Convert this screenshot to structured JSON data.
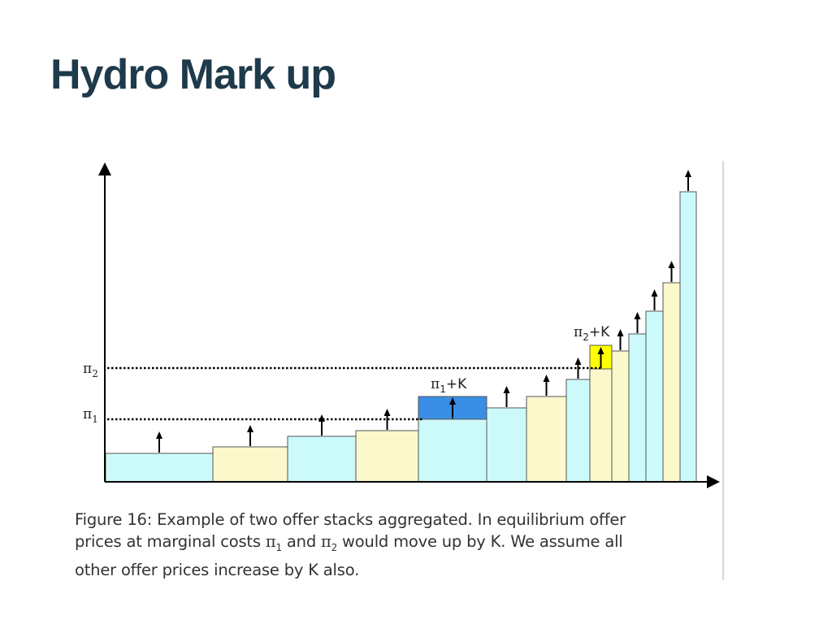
{
  "slide": {
    "title": "Hydro Mark up"
  },
  "diagram": {
    "y_labels": {
      "pi2": {
        "symbol": "π",
        "subscript": "2"
      },
      "pi1": {
        "symbol": "π",
        "subscript": "1"
      }
    },
    "annotations": {
      "pi1_plus_k": {
        "symbol": "π",
        "subscript": "1",
        "suffix": "+K"
      },
      "pi2_plus_k": {
        "symbol": "π",
        "subscript": "2",
        "suffix": "+K"
      }
    },
    "colors": {
      "cyan": "#ccfafa",
      "cream": "#fbf8cc",
      "blue_markup": "#3a8ee6",
      "yellow_markup": "#ffff00",
      "line": "#000000"
    },
    "blocks": [
      {
        "color": "cyan",
        "level": 1,
        "arrow": true
      },
      {
        "color": "cream",
        "level": 2,
        "arrow": true
      },
      {
        "color": "cyan",
        "level": 3,
        "arrow": true
      },
      {
        "color": "cream",
        "level": 4,
        "arrow": true
      },
      {
        "color": "cyan",
        "level": 5,
        "arrow": true,
        "markup": "pi1_plus_k"
      },
      {
        "color": "cyan",
        "level": 6,
        "arrow": true
      },
      {
        "color": "cream",
        "level": 7,
        "arrow": true
      },
      {
        "color": "cyan",
        "level": 8,
        "arrow": true
      },
      {
        "color": "cream",
        "level": 9,
        "arrow": true,
        "markup": "pi2_plus_k"
      },
      {
        "color": "cream",
        "level": 10,
        "arrow": true
      },
      {
        "color": "cyan",
        "level": 11,
        "arrow": true
      },
      {
        "color": "cyan",
        "level": 12,
        "arrow": true
      },
      {
        "color": "cream",
        "level": 13,
        "arrow": true
      },
      {
        "color": "cyan",
        "level": 14,
        "arrow": true
      }
    ]
  },
  "caption": {
    "line1": "Figure 16: Example of two offer stacks aggregated. In equilibrium offer",
    "line2_a": "prices at marginal costs ",
    "line2_pi1": "π",
    "line2_sub1": "1",
    "line2_b": " and ",
    "line2_pi2": "π",
    "line2_sub2": "2",
    "line2_c": " would move up by K. We assume all",
    "line3": "other offer prices increase by K also."
  }
}
